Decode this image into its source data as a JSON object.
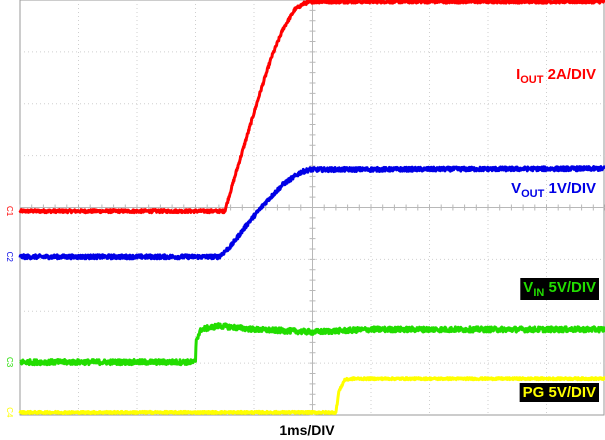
{
  "chart_data": {
    "type": "line",
    "xlabel": "1ms/DIV",
    "grid": true,
    "divisions": {
      "x": 10,
      "y": 8
    },
    "xlim": [
      0,
      10
    ],
    "ylim": [
      0,
      8
    ],
    "series": [
      {
        "name": "IOUT 2A/DIV",
        "label_main": "I",
        "label_sub": "OUT",
        "label_rest": " 2A/DIV",
        "color": "#ff0000",
        "label_bg": "",
        "channel_marker": "C1",
        "noise": 0.03,
        "x": [
          0,
          3.5,
          3.7,
          3.9,
          4.1,
          4.3,
          4.5,
          4.7,
          4.85,
          5.0,
          10
        ],
        "y": [
          3.93,
          3.93,
          4.7,
          5.45,
          6.2,
          6.9,
          7.45,
          7.82,
          7.93,
          7.97,
          7.97
        ]
      },
      {
        "name": "VOUT 1V/DIV",
        "label_main": "V",
        "label_sub": "OUT",
        "label_rest": " 1V/DIV",
        "color": "#0000e6",
        "label_bg": "",
        "channel_marker": "C2",
        "noise": 0.04,
        "x": [
          0,
          3.4,
          3.6,
          3.9,
          4.2,
          4.5,
          4.8,
          4.95,
          10
        ],
        "y": [
          3.05,
          3.05,
          3.25,
          3.7,
          4.1,
          4.45,
          4.68,
          4.73,
          4.75
        ]
      },
      {
        "name": "VIN 5V/DIV",
        "label_main": "V",
        "label_sub": "IN",
        "label_rest": " 5V/DIV",
        "color": "#22dd00",
        "label_bg": "#000000",
        "channel_marker": "C3",
        "noise": 0.05,
        "x": [
          0,
          3.0,
          3.01,
          3.1,
          3.4,
          4.0,
          5.0,
          6.0,
          10
        ],
        "y": [
          1.02,
          1.02,
          1.45,
          1.65,
          1.72,
          1.65,
          1.6,
          1.65,
          1.65
        ]
      },
      {
        "name": "PG 5V/DIV",
        "label_main": "PG 5V/DIV",
        "label_sub": "",
        "label_rest": "",
        "color": "#ffff00",
        "label_bg": "#000000",
        "channel_marker": "C4",
        "noise": 0.02,
        "x": [
          0,
          5.4,
          5.45,
          5.55,
          5.7,
          10
        ],
        "y": [
          0.05,
          0.05,
          0.45,
          0.68,
          0.7,
          0.7
        ]
      }
    ]
  }
}
